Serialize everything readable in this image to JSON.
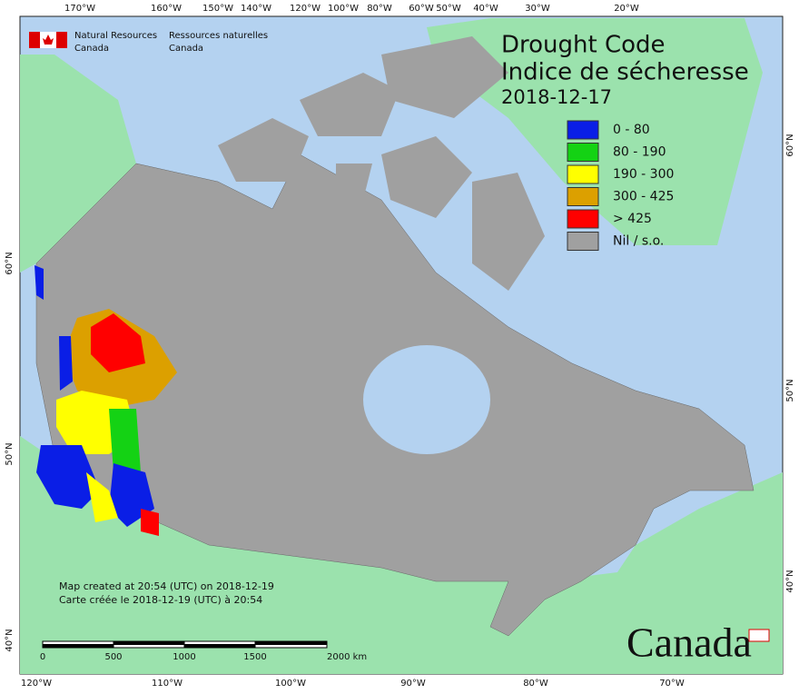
{
  "header": {
    "agency_en": [
      "Natural Resources",
      "Canada"
    ],
    "agency_fr": [
      "Ressources naturelles",
      "Canada"
    ]
  },
  "title": {
    "line1": "Drought Code",
    "line2": "Indice de sécheresse",
    "date": "2018-12-17"
  },
  "legend": [
    {
      "label": "0 - 80",
      "color": "#0a1ee6"
    },
    {
      "label": "80 - 190",
      "color": "#14d214"
    },
    {
      "label": "190 - 300",
      "color": "#ffff00"
    },
    {
      "label": "300 - 425",
      "color": "#dca000"
    },
    {
      "label": "> 425",
      "color": "#ff0000"
    },
    {
      "label": "Nil / s.o.",
      "color": "#a0a0a0"
    }
  ],
  "graticule": {
    "top": [
      "170°W",
      "160°W",
      "150°W",
      "140°W",
      "120°W",
      "100°W",
      "80°W",
      "60°W",
      "50°W",
      "40°W",
      "30°W",
      "20°W"
    ],
    "bottom": [
      "120°W",
      "110°W",
      "100°W",
      "90°W",
      "80°W",
      "70°W"
    ],
    "left": [
      "60°N",
      "50°N",
      "40°N"
    ],
    "right": [
      "60°N",
      "50°N",
      "40°N"
    ]
  },
  "footnote": [
    "Map created at 20:54 (UTC) on 2018-12-19",
    "Carte créée le 2018-12-19 (UTC) à 20:54"
  ],
  "scale_bar": [
    "0",
    "500",
    "1000",
    "1500",
    "2000 km"
  ],
  "wordmark": "Canada"
}
